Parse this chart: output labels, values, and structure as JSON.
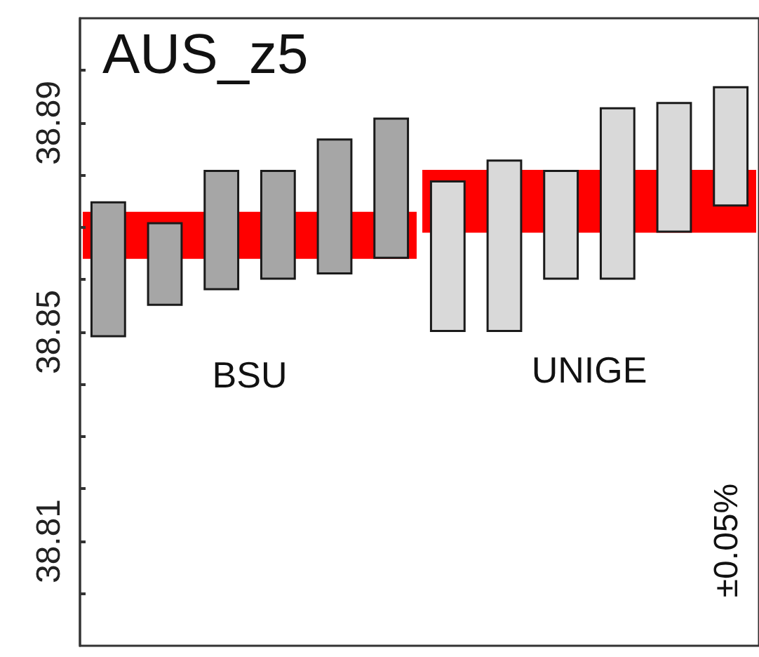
{
  "chart_data": {
    "type": "bar",
    "title": "AUS_z5",
    "categories": [
      null,
      null,
      null,
      null,
      null,
      null,
      null,
      null,
      null,
      null,
      null,
      null
    ],
    "colors": [
      "#a6a6a6",
      "#a6a6a6",
      "#a6a6a6",
      "#a6a6a6",
      "#a6a6a6",
      "#a6a6a6",
      "#d9d9d9",
      "#d9d9d9",
      "#d9d9d9",
      "#d9d9d9",
      "#d9d9d9",
      "#d9d9d9"
    ],
    "base": [
      38.849,
      38.855,
      38.858,
      38.86,
      38.861,
      38.864,
      38.85,
      38.85,
      38.86,
      38.86,
      38.869,
      38.874
    ],
    "values": [
      0.026,
      0.016,
      0.023,
      0.021,
      0.026,
      0.027,
      0.029,
      0.033,
      0.021,
      0.033,
      0.025,
      0.023
    ],
    "bands": [
      {
        "axis": "y",
        "from": 38.864,
        "to": 38.873,
        "color": "#ff0000"
      },
      {
        "axis": "y",
        "from": 38.869,
        "to": 38.881,
        "color": "#ff0000"
      }
    ],
    "ylim": [
      38.79,
      38.91
    ],
    "yticks": [
      {
        "value": 38.8,
        "label": null
      },
      38.81,
      {
        "value": 38.82,
        "label": null
      },
      {
        "value": 38.83,
        "label": null
      },
      {
        "value": 38.84,
        "label": null
      },
      38.85,
      {
        "value": 38.86,
        "label": null
      },
      {
        "value": 38.87,
        "label": null
      },
      {
        "value": 38.88,
        "label": null
      },
      38.89,
      {
        "value": 38.9,
        "label": null
      }
    ],
    "annotations": [
      "BSU",
      "UNIGE",
      "±0.05%"
    ],
    "grid": false
  }
}
